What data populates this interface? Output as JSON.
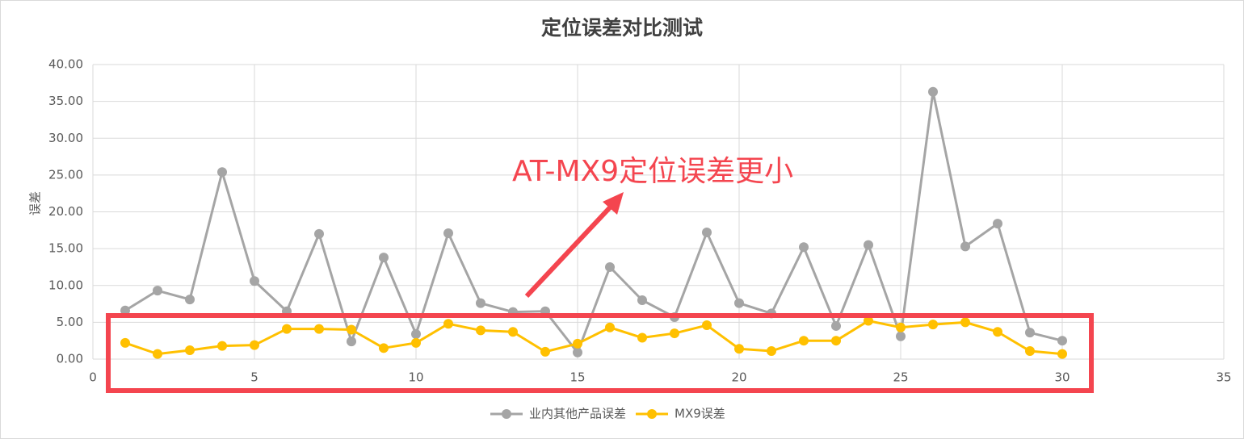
{
  "chart_data": {
    "type": "line",
    "title": "定位误差对比测试",
    "y_label": "误差",
    "annotation": "AT-MX9定位误差更小",
    "x": [
      1,
      2,
      3,
      4,
      5,
      6,
      7,
      8,
      9,
      10,
      11,
      12,
      13,
      14,
      15,
      16,
      17,
      18,
      19,
      20,
      21,
      22,
      23,
      24,
      25,
      26,
      27,
      28,
      29,
      30
    ],
    "series": [
      {
        "name": "业内其他产品误差",
        "color": "#a5a5a5",
        "values": [
          6.6,
          9.3,
          8.1,
          25.4,
          10.6,
          6.5,
          17.0,
          2.4,
          13.8,
          3.4,
          17.1,
          7.6,
          6.4,
          6.5,
          0.9,
          12.5,
          8.0,
          5.7,
          17.2,
          7.6,
          6.2,
          15.2,
          4.5,
          15.5,
          3.1,
          36.3,
          15.3,
          18.4,
          3.6,
          2.5
        ]
      },
      {
        "name": "MX9误差",
        "color": "#ffc000",
        "values": [
          2.2,
          0.7,
          1.2,
          1.8,
          1.9,
          4.1,
          4.1,
          4.0,
          1.5,
          2.2,
          4.8,
          3.9,
          3.7,
          1.0,
          2.1,
          4.3,
          2.9,
          3.5,
          4.6,
          1.4,
          1.1,
          2.5,
          2.5,
          5.2,
          4.3,
          4.7,
          5.0,
          3.7,
          1.1,
          0.7
        ]
      }
    ],
    "xlim": [
      0,
      35
    ],
    "xticks": [
      0,
      5,
      10,
      15,
      20,
      25,
      30,
      35
    ],
    "ylim": [
      0,
      40
    ],
    "yticks": [
      {
        "value": 0,
        "label": "0.00"
      },
      {
        "value": 5,
        "label": "5.00"
      },
      {
        "value": 10,
        "label": "10.00"
      },
      {
        "value": 15,
        "label": "15.00"
      },
      {
        "value": 20,
        "label": "20.00"
      },
      {
        "value": 25,
        "label": "25.00"
      },
      {
        "value": 30,
        "label": "30.00"
      },
      {
        "value": 35,
        "label": "35.00"
      },
      {
        "value": 40,
        "label": "40.00"
      }
    ],
    "grid": true,
    "legend": "bottom"
  }
}
